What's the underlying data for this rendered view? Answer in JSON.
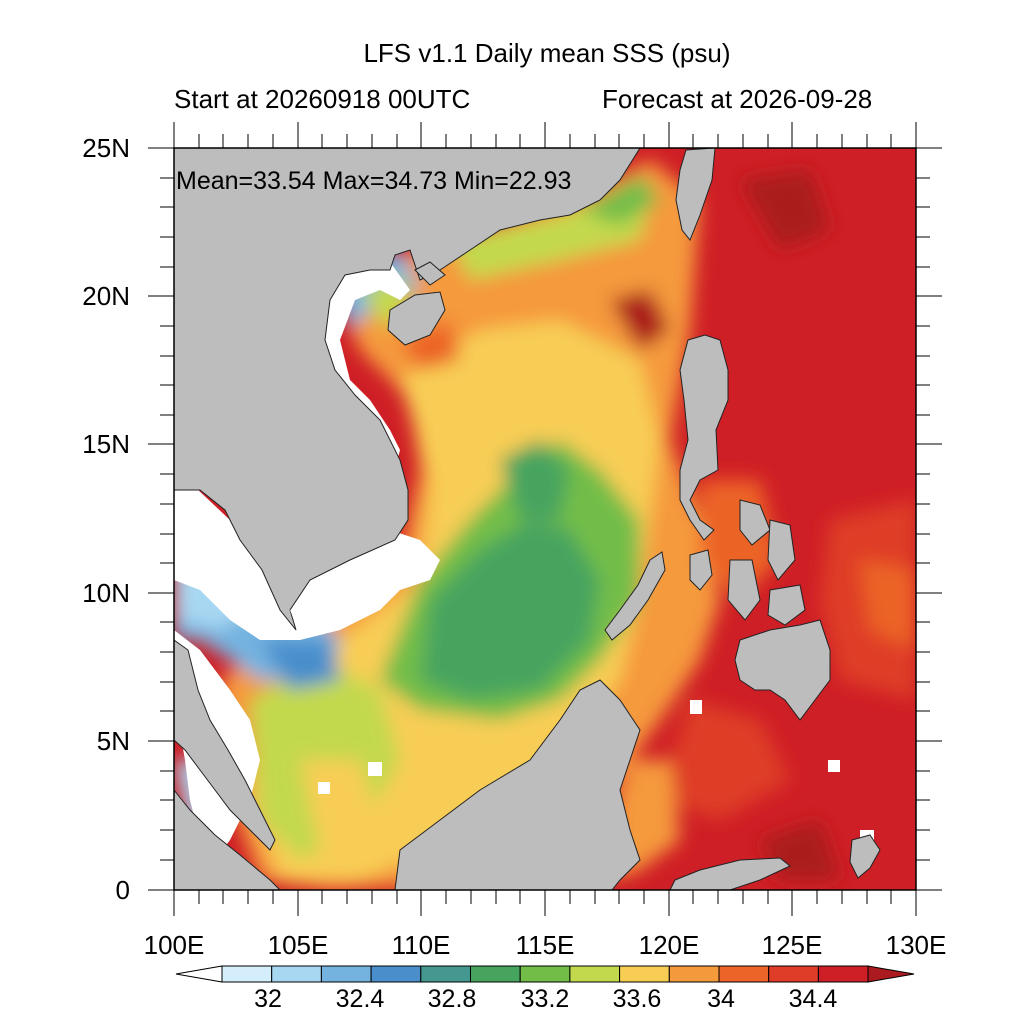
{
  "title": "LFS v1.1 Daily mean SSS (psu)",
  "subtitle_left": "Start at 20260918 00UTC",
  "subtitle_right": "Forecast at 2026-09-28",
  "stats": "Mean=33.54  Max=34.73  Min=22.93",
  "lat_ticks": [
    "25N",
    "20N",
    "15N",
    "10N",
    "5N",
    "0"
  ],
  "lon_ticks": [
    "100E",
    "105E",
    "110E",
    "115E",
    "120E",
    "125E",
    "130E"
  ],
  "colorbar": {
    "labels": [
      "32",
      "32.4",
      "32.8",
      "33.2",
      "33.6",
      "34",
      "34.4"
    ],
    "colors": [
      "#ffffff",
      "#d4eefb",
      "#a8d7f2",
      "#74b3e0",
      "#4a8fcc",
      "#45988f",
      "#46a45e",
      "#72bd48",
      "#c3d94d",
      "#f8cd54",
      "#f59a3c",
      "#ec6428",
      "#df3d27",
      "#cf1f26",
      "#aa1a1e"
    ]
  },
  "colors": {
    "land": "#bdbdbd",
    "ocean_dark_red": "#cf1f26"
  }
}
